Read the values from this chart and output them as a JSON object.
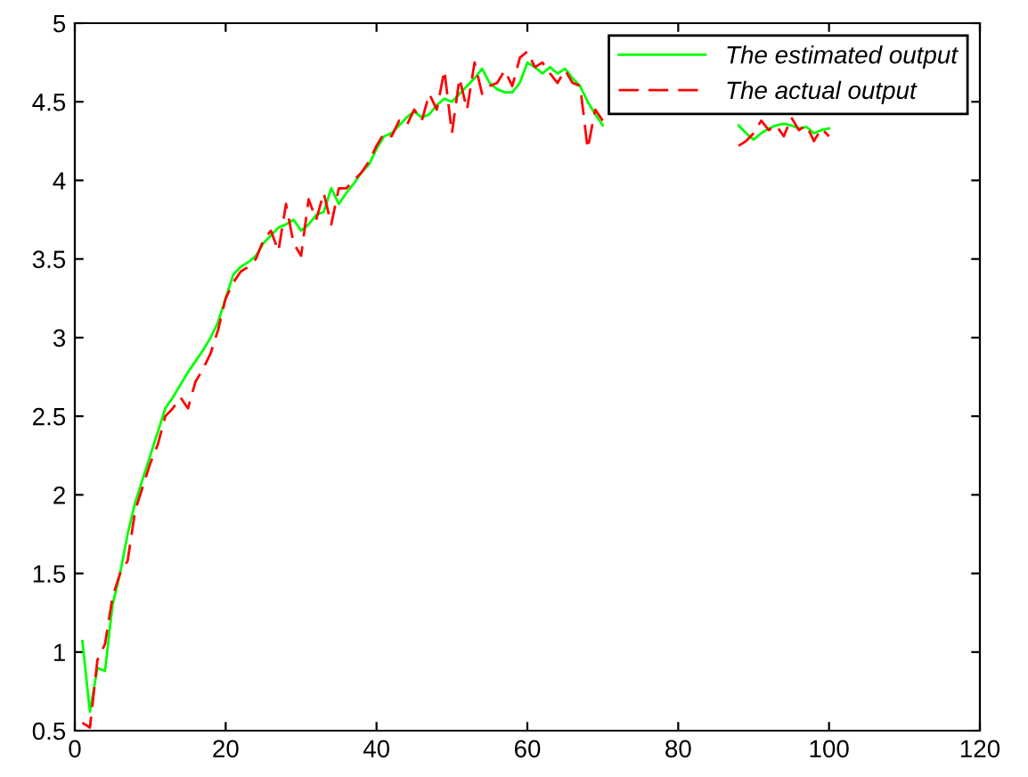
{
  "chart_data": {
    "type": "line",
    "legend": "top right",
    "grid": false,
    "xlim": [
      0,
      120
    ],
    "ylim": [
      0.5,
      5
    ],
    "xticks": [
      0,
      20,
      40,
      60,
      80,
      100,
      120
    ],
    "yticks": [
      0.5,
      1,
      1.5,
      2,
      2.5,
      3,
      3.5,
      4,
      4.5,
      5
    ],
    "x": [
      1,
      2,
      3,
      4,
      5,
      6,
      7,
      8,
      9,
      10,
      11,
      12,
      13,
      14,
      15,
      16,
      17,
      18,
      19,
      20,
      21,
      22,
      23,
      24,
      25,
      26,
      27,
      28,
      29,
      30,
      31,
      32,
      33,
      34,
      35,
      36,
      37,
      38,
      39,
      40,
      41,
      42,
      43,
      44,
      45,
      46,
      47,
      48,
      49,
      50,
      51,
      52,
      53,
      54,
      55,
      56,
      57,
      58,
      59,
      60,
      61,
      62,
      63,
      64,
      65,
      66,
      67,
      68,
      69,
      70,
      71,
      72,
      73,
      74,
      75,
      76,
      77,
      78,
      79,
      80,
      81,
      82,
      83,
      84,
      85,
      86,
      87,
      88,
      89,
      90,
      91,
      92,
      93,
      94,
      95,
      96,
      97,
      98,
      99,
      100
    ],
    "series": [
      {
        "name": "The estimated output",
        "color": "#00ff00",
        "line_style": "solid",
        "values": [
          1.07,
          0.62,
          0.9,
          0.88,
          1.3,
          1.5,
          1.75,
          1.95,
          2.1,
          2.25,
          2.4,
          2.55,
          2.62,
          2.7,
          2.78,
          2.85,
          2.92,
          3.0,
          3.1,
          3.25,
          3.4,
          3.45,
          3.48,
          3.52,
          3.6,
          3.65,
          3.7,
          3.72,
          3.75,
          3.68,
          3.72,
          3.78,
          3.8,
          3.95,
          3.85,
          3.92,
          3.98,
          4.05,
          4.1,
          4.2,
          4.28,
          4.3,
          4.35,
          4.4,
          4.44,
          4.4,
          4.42,
          4.48,
          4.52,
          4.5,
          4.55,
          4.6,
          4.65,
          4.71,
          4.62,
          4.58,
          4.56,
          4.56,
          4.62,
          4.75,
          4.72,
          4.68,
          4.72,
          4.68,
          4.71,
          4.65,
          4.6,
          4.5,
          4.42,
          4.35,
          null,
          null,
          null,
          null,
          null,
          null,
          null,
          null,
          null,
          null,
          null,
          null,
          null,
          null,
          null,
          null,
          null,
          4.35,
          4.3,
          4.26,
          4.3,
          4.33,
          4.35,
          4.36,
          4.35,
          4.33,
          4.34,
          4.3,
          4.32,
          4.33
        ]
      },
      {
        "name": "The actual output",
        "color": "#ff0000",
        "line_style": "dashed",
        "values": [
          0.55,
          0.52,
          0.95,
          1.05,
          1.35,
          1.5,
          1.58,
          1.9,
          2.05,
          2.2,
          2.32,
          2.5,
          2.55,
          2.62,
          2.55,
          2.72,
          2.8,
          2.9,
          3.05,
          3.25,
          3.35,
          3.42,
          3.45,
          3.5,
          3.62,
          3.68,
          3.55,
          3.85,
          3.6,
          3.52,
          3.88,
          3.75,
          3.92,
          3.72,
          3.95,
          3.95,
          4.0,
          4.05,
          4.12,
          4.22,
          4.3,
          4.28,
          4.38,
          4.35,
          4.45,
          4.38,
          4.55,
          4.45,
          4.7,
          4.3,
          4.65,
          4.45,
          4.75,
          4.55,
          4.6,
          4.62,
          4.7,
          4.6,
          4.78,
          4.82,
          4.72,
          4.75,
          4.68,
          4.62,
          4.7,
          4.62,
          4.6,
          4.2,
          4.45,
          4.38,
          null,
          null,
          null,
          null,
          null,
          null,
          null,
          null,
          null,
          null,
          null,
          null,
          null,
          null,
          null,
          null,
          null,
          4.22,
          4.25,
          4.3,
          4.38,
          4.32,
          4.35,
          4.28,
          4.4,
          4.32,
          4.35,
          4.25,
          4.33,
          4.28
        ]
      }
    ]
  }
}
